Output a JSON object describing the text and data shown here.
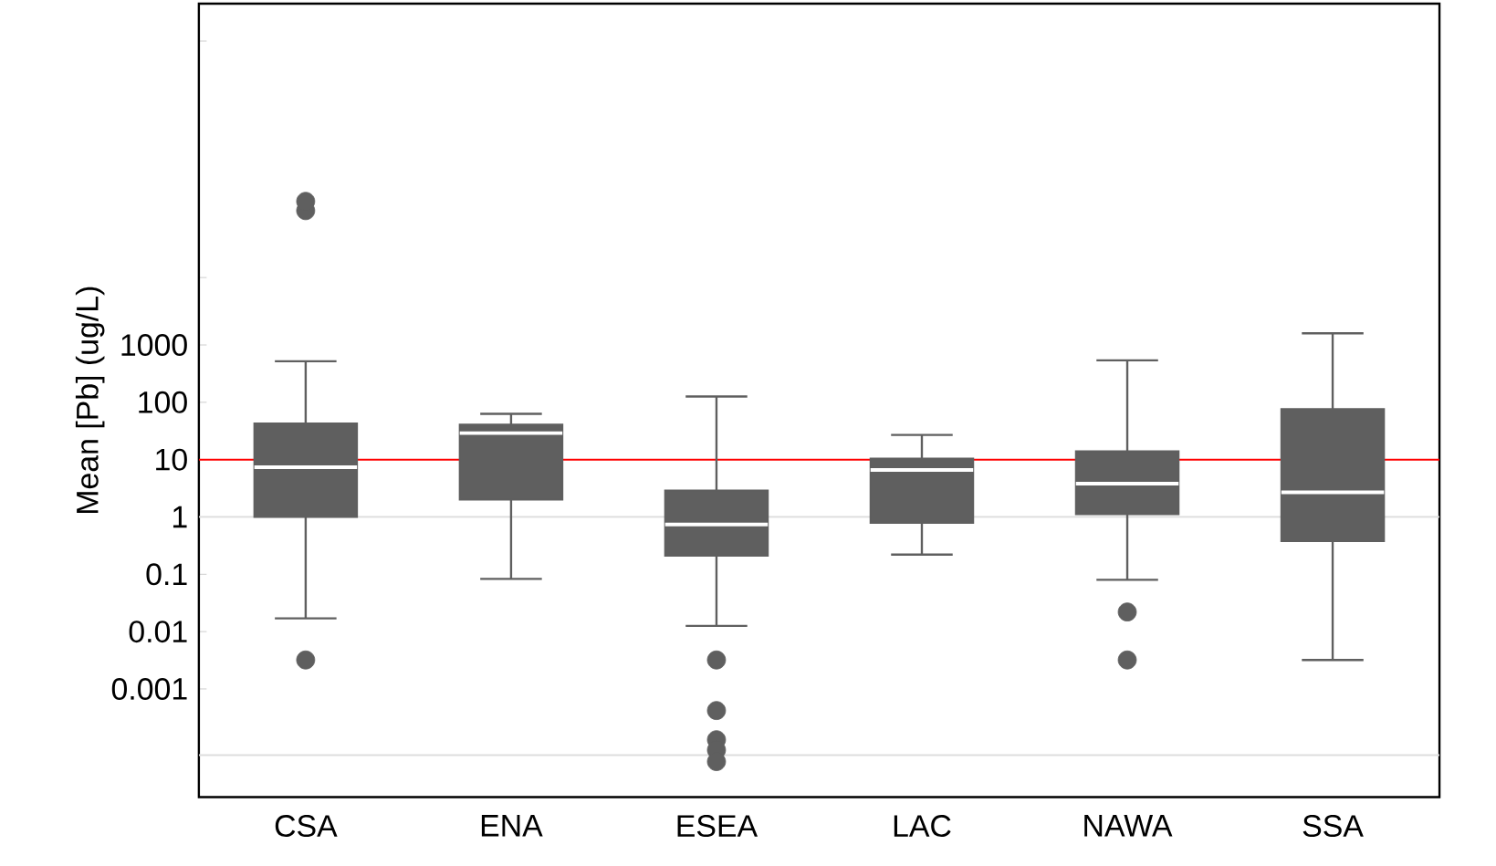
{
  "chart_data": {
    "type": "box",
    "ylabel": "Mean [Pb] (ug/L)",
    "log": "y",
    "color": "#5f5f5f",
    "categories": [
      "CSA",
      "ENA",
      "ESEA",
      "LAC",
      "NAWA",
      "SSA"
    ],
    "ylim": [
      1.3e-05,
      900000000.0
    ],
    "yticks": [
      {
        "value": 7e-05,
        "label": null
      },
      0.001,
      0.01,
      0.1,
      1,
      10,
      100,
      1000,
      {
        "value": 15000,
        "label": null
      },
      {
        "value": 200000000.0,
        "label": null
      }
    ],
    "boxes": [
      {
        "low": 0.017,
        "q1": 1,
        "median": 7.4,
        "q3": 43,
        "high": 520,
        "outliers": [
          0.0032,
          220000,
          320000
        ]
      },
      {
        "low": 0.083,
        "q1": 2.0,
        "median": 29,
        "q3": 41,
        "high": 63
      },
      {
        "low": 0.0126,
        "q1": 0.21,
        "median": 0.74,
        "q3": 2.9,
        "high": 126,
        "outliers": [
          0.0032,
          0.00042,
          0.00013,
          8.6e-05,
          5.4e-05
        ]
      },
      {
        "low": 0.22,
        "q1": 0.79,
        "median": 6.6,
        "q3": 10.4,
        "high": 27
      },
      {
        "low": 0.08,
        "q1": 1.12,
        "median": 3.8,
        "q3": 14,
        "high": 540,
        "outliers": [
          0.022,
          0.0032
        ]
      },
      {
        "low": 0.0032,
        "q1": 0.38,
        "median": 2.7,
        "q3": 76,
        "high": 1600
      }
    ],
    "ref_lines": [
      {
        "axis": "y",
        "value": 10,
        "color": "#ff0000"
      },
      {
        "axis": "y",
        "value": 1,
        "color": "#dddddd"
      },
      {
        "axis": "y",
        "value": 7e-05,
        "color": "#dddddd"
      }
    ]
  }
}
